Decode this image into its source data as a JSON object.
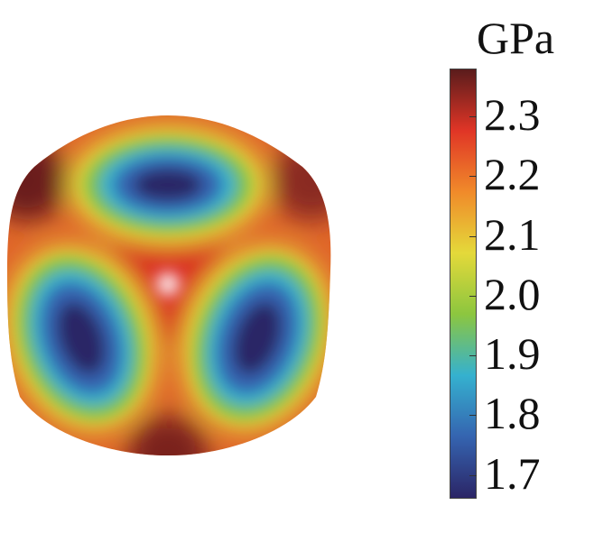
{
  "figure": {
    "unit_label": "GPa",
    "colorbar": {
      "ticks": [
        "2.3",
        "2.2",
        "2.1",
        "2.0",
        "1.9",
        "1.8",
        "1.7"
      ],
      "tick_values": [
        2.3,
        2.2,
        2.1,
        2.0,
        1.9,
        1.8,
        1.7
      ],
      "range": [
        1.66,
        2.38
      ],
      "colors": [
        "#5a1c1c",
        "#e03526",
        "#f08a2a",
        "#e4d93a",
        "#8cc63f",
        "#35b1cf",
        "#3564b0",
        "#2b2566"
      ]
    }
  }
}
